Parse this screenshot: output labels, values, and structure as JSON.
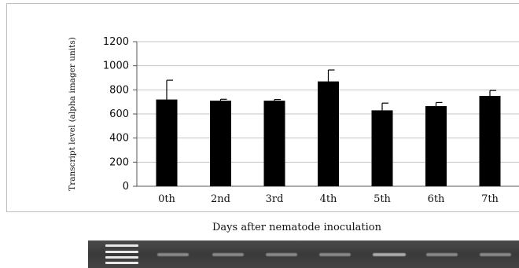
{
  "chart_data": {
    "type": "bar",
    "title": "",
    "xlabel": "Days after nematode inoculation",
    "ylabel": "Transcript level (alpha imager units)",
    "categories": [
      "0th",
      "2nd",
      "3rd",
      "4th",
      "5th",
      "6th",
      "7th"
    ],
    "series": [
      {
        "values": [
          720,
          710,
          710,
          870,
          630,
          665,
          750
        ],
        "errors": [
          160,
          12,
          10,
          95,
          60,
          30,
          45
        ],
        "color": "#000000"
      }
    ],
    "ylim": [
      0,
      1200
    ],
    "yticks": [
      "0",
      "200",
      "400",
      "600",
      "800",
      "1000",
      "1200"
    ],
    "grid": true,
    "legend": "none"
  },
  "gel": {
    "description_icon": "gel-electrophoresis-image"
  }
}
